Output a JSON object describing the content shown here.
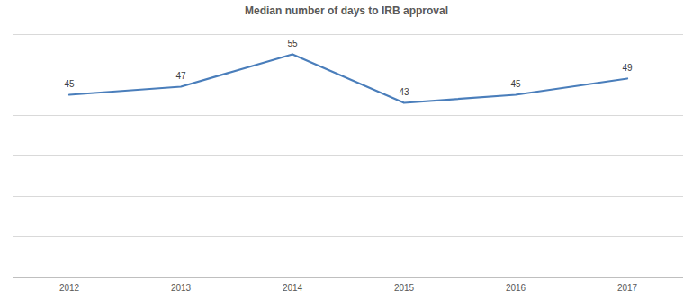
{
  "chart_data": {
    "type": "line",
    "title": "Median number of days to IRB approval",
    "categories": [
      "2012",
      "2013",
      "2014",
      "2015",
      "2016",
      "2017"
    ],
    "values": [
      45,
      47,
      55,
      43,
      45,
      49
    ],
    "color": "#4a7ebb",
    "ylim": [
      0,
      60
    ],
    "yticks": [
      0,
      10,
      20,
      30,
      40,
      50,
      60
    ],
    "grid": true,
    "data_labels": true,
    "tick_labels": "x"
  }
}
